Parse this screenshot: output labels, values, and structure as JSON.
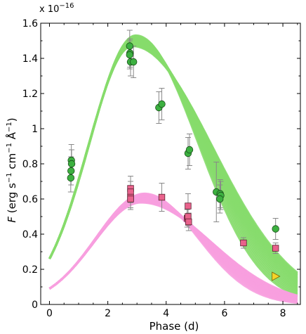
{
  "chart_data": {
    "type": "scatter",
    "xlabel": "Phase (d)",
    "ylabel_parts": {
      "f": "F",
      "open": " (erg s",
      "m1a": "−1",
      "cm": " cm",
      "m1b": "−1",
      "space": " ",
      "ang": "Å",
      "m1c": "−1",
      "close": ")"
    },
    "y_multiplier": {
      "base": "x 10",
      "exp": "−16"
    },
    "xlim": [
      -0.3,
      8.6
    ],
    "ylim": [
      0,
      1.6
    ],
    "x_ticks": [
      0,
      2,
      4,
      6,
      8
    ],
    "y_ticks": [
      0,
      0.2,
      0.4,
      0.6,
      0.8,
      1.0,
      1.2,
      1.4,
      1.6
    ],
    "y_tick_labels": [
      "0",
      "0.2",
      "0.4",
      "0.6",
      "0.8",
      "1",
      "1.2",
      "1.4",
      "1.6"
    ],
    "model_bands": [
      {
        "color": "#86dc6c",
        "peak_x": 2.9,
        "peak_y": [
          1.47,
          1.53
        ],
        "start_y": 0.26,
        "end_y": [
          0.05,
          0.18
        ]
      },
      {
        "color": "#f79edf",
        "peak_x": 3.2,
        "peak_y": [
          0.58,
          0.63
        ],
        "start_y": 0.09,
        "end_y": [
          0.01,
          0.05
        ]
      }
    ],
    "series": [
      {
        "marker": "circle",
        "color": "#3cb040",
        "points": [
          {
            "x": 0.75,
            "y": 0.82,
            "err": 0.09
          },
          {
            "x": 0.76,
            "y": 0.8,
            "err": 0.08
          },
          {
            "x": 0.74,
            "y": 0.76,
            "err": 0.08
          },
          {
            "x": 0.73,
            "y": 0.72,
            "err": 0.08
          },
          {
            "x": 2.75,
            "y": 1.47,
            "err": 0.09
          },
          {
            "x": 2.76,
            "y": 1.43,
            "err": 0.08
          },
          {
            "x": 2.75,
            "y": 1.42,
            "err": 0.08
          },
          {
            "x": 2.78,
            "y": 1.38,
            "err": 0.08
          },
          {
            "x": 2.88,
            "y": 1.38,
            "err": 0.09
          },
          {
            "x": 3.75,
            "y": 1.12,
            "err": 0.09
          },
          {
            "x": 3.85,
            "y": 1.14,
            "err": 0.09
          },
          {
            "x": 4.75,
            "y": 0.86,
            "err": 0.09
          },
          {
            "x": 4.8,
            "y": 0.88,
            "err": 0.09
          },
          {
            "x": 5.72,
            "y": 0.64,
            "err": 0.17
          },
          {
            "x": 5.85,
            "y": 0.63,
            "err": 0.08
          },
          {
            "x": 5.87,
            "y": 0.62,
            "err": 0.08
          },
          {
            "x": 5.84,
            "y": 0.6,
            "err": 0.08
          },
          {
            "x": 7.75,
            "y": 0.43,
            "err": 0.06
          }
        ]
      },
      {
        "marker": "square",
        "color": "#e9628c",
        "points": [
          {
            "x": 2.78,
            "y": 0.66,
            "err": 0.07
          },
          {
            "x": 2.78,
            "y": 0.64,
            "err": 0.06
          },
          {
            "x": 2.78,
            "y": 0.61,
            "err": 0.06
          },
          {
            "x": 2.78,
            "y": 0.6,
            "err": 0.06
          },
          {
            "x": 3.85,
            "y": 0.61,
            "err": 0.08
          },
          {
            "x": 4.75,
            "y": 0.56,
            "err": 0.07
          },
          {
            "x": 4.72,
            "y": 0.49,
            "err": 0.05
          },
          {
            "x": 4.75,
            "y": 0.5,
            "err": 0.05
          },
          {
            "x": 4.77,
            "y": 0.47,
            "err": 0.05
          },
          {
            "x": 6.65,
            "y": 0.35,
            "err": 0.03
          },
          {
            "x": 7.75,
            "y": 0.32,
            "err": 0.03
          }
        ]
      },
      {
        "marker": "triangle-right",
        "color": "#f5d327",
        "points": [
          {
            "x": 7.75,
            "y": 0.16
          }
        ]
      }
    ]
  }
}
